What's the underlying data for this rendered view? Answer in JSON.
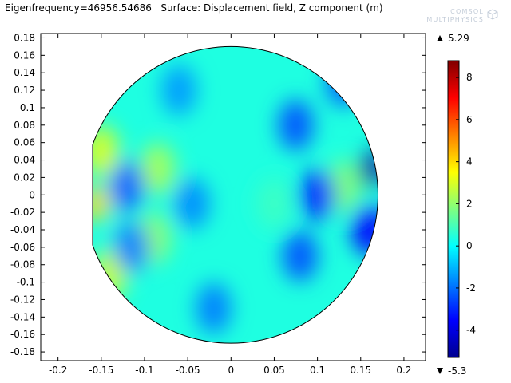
{
  "title": "Eigenfrequency=46956.54686   Surface: Displacement field, Z component (m)",
  "logo": {
    "line1": "COMSOL",
    "line2": "MULTIPHYSICS"
  },
  "colors": {
    "frame": "#000000",
    "background": "#ffffff",
    "logo": "#c3ccd8",
    "field_base": "#2fd0ee"
  },
  "chart_data": {
    "type": "heatmap",
    "title": "Eigenfrequency=46956.54686   Surface: Displacement field, Z component (m)",
    "xlabel": "",
    "ylabel": "",
    "xlim": [
      -0.22,
      0.225
    ],
    "ylim": [
      -0.19,
      0.185
    ],
    "x_ticks": [
      "-0.2",
      "-0.15",
      "-0.1",
      "-0.05",
      "0",
      "0.05",
      "0.1",
      "0.15",
      "0.2"
    ],
    "y_ticks": [
      "0.18",
      "0.16",
      "0.14",
      "0.12",
      "0.1",
      "0.08",
      "0.06",
      "0.04",
      "0.02",
      "0",
      "-0.02",
      "-0.04",
      "-0.06",
      "-0.08",
      "-0.1",
      "-0.12",
      "-0.14",
      "-0.16",
      "-0.18"
    ],
    "colormap": "jet",
    "colorbar": {
      "ticks": [
        "8",
        "6",
        "4",
        "2",
        "0",
        "-2",
        "-4"
      ],
      "range": [
        -5.3,
        8.8
      ],
      "max_label": "5.29",
      "min_label": "-5.3"
    },
    "domain": {
      "shape": "circle",
      "radius": 0.17,
      "cut_x": [
        -0.16,
        0.17
      ]
    },
    "features": [
      {
        "kind": "high",
        "x": -0.155,
        "y": -0.01,
        "value": 4.0
      },
      {
        "kind": "high",
        "x": -0.15,
        "y": 0.05,
        "value": 3.0
      },
      {
        "kind": "high",
        "x": -0.14,
        "y": -0.09,
        "value": 2.8
      },
      {
        "kind": "high",
        "x": -0.085,
        "y": 0.03,
        "value": 2.3
      },
      {
        "kind": "high",
        "x": -0.09,
        "y": -0.05,
        "value": 2.0
      },
      {
        "kind": "high",
        "x": 0.13,
        "y": 0.01,
        "value": 1.8
      },
      {
        "kind": "low",
        "x": 0.163,
        "y": 0.03,
        "value": -4.8
      },
      {
        "kind": "low",
        "x": 0.16,
        "y": -0.04,
        "value": -3.5
      },
      {
        "kind": "low",
        "x": 0.1,
        "y": 0.0,
        "value": -3.0
      },
      {
        "kind": "low",
        "x": 0.075,
        "y": 0.08,
        "value": -2.4
      },
      {
        "kind": "low",
        "x": 0.08,
        "y": -0.07,
        "value": -2.4
      },
      {
        "kind": "low",
        "x": -0.12,
        "y": 0.01,
        "value": -2.2
      },
      {
        "kind": "low",
        "x": -0.115,
        "y": -0.06,
        "value": -1.8
      },
      {
        "kind": "low",
        "x": -0.045,
        "y": -0.01,
        "value": -1.6
      },
      {
        "kind": "low",
        "x": -0.02,
        "y": -0.13,
        "value": -1.8
      },
      {
        "kind": "low",
        "x": 0.13,
        "y": 0.13,
        "value": -2.2
      },
      {
        "kind": "low",
        "x": -0.06,
        "y": 0.12,
        "value": -1.4
      },
      {
        "kind": "high",
        "x": 0.05,
        "y": -0.01,
        "value": 0.8
      }
    ]
  }
}
